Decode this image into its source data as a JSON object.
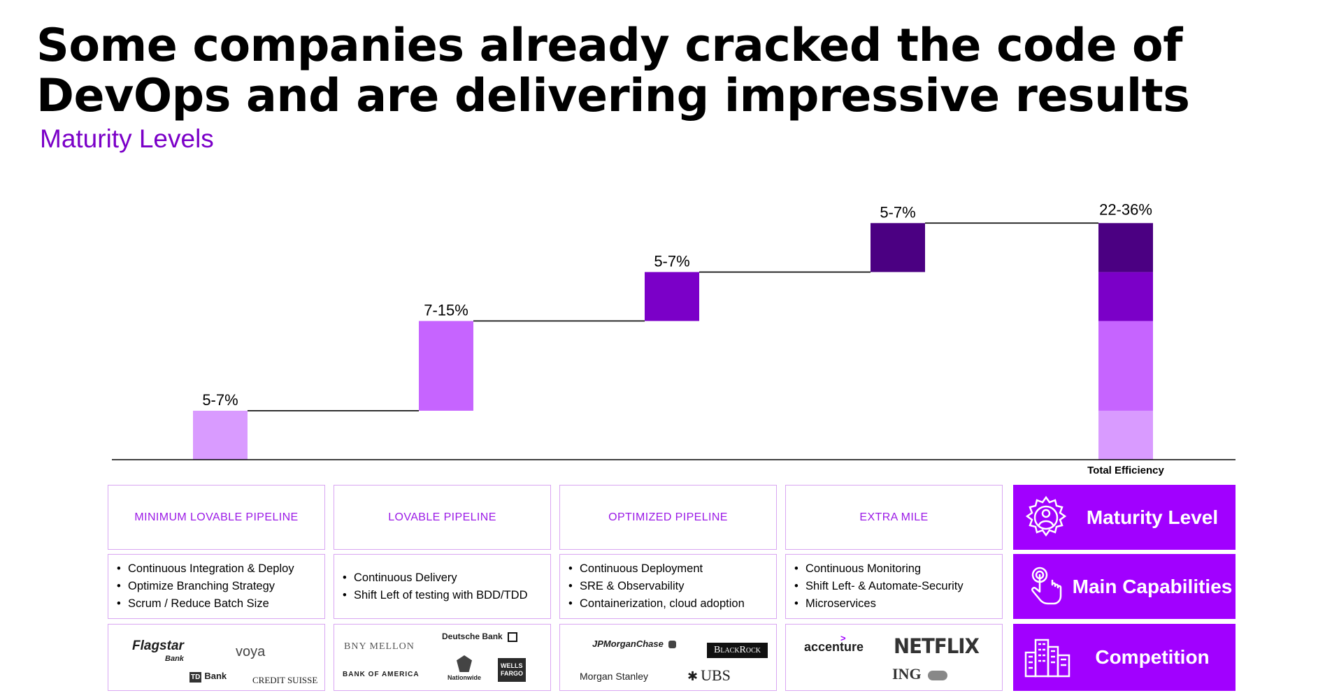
{
  "title": {
    "line1": "Some companies already cracked the code of",
    "line2": "DevOps and are delivering impressive results"
  },
  "subtitle": "Maturity Levels",
  "colors": {
    "accent": "#A100FF",
    "level1": "#D99BFF",
    "level2": "#C664FF",
    "level3": "#7B00C8",
    "level4": "#4B0082",
    "border": "#D9A6F2"
  },
  "chart_data": {
    "type": "bar",
    "subtype": "waterfall",
    "categories": [
      "MINIMUM LOVABLE PIPELINE",
      "LOVABLE PIPELINE",
      "OPTIMIZED PIPELINE",
      "EXTRA MILE",
      "Total Efficiency"
    ],
    "bars": [
      {
        "label": "5-7%",
        "low": 0,
        "high": 6
      },
      {
        "label": "7-15%",
        "low": 6,
        "high": 17
      },
      {
        "label": "5-7%",
        "low": 17,
        "high": 23
      },
      {
        "label": "5-7%",
        "low": 23,
        "high": 29
      }
    ],
    "total": {
      "label": "22-36%",
      "segments": [
        6,
        11,
        6,
        6
      ]
    },
    "total_label": "Total Efficiency",
    "ylim": [
      0,
      31
    ],
    "connectors": true,
    "grid": false
  },
  "stages": [
    {
      "name": "MINIMUM LOVABLE PIPELINE",
      "capabilities": [
        "Continuous Integration & Deploy",
        "Optimize Branching Strategy",
        "Scrum / Reduce Batch Size"
      ],
      "companies": [
        "Flagstar",
        "Bank",
        "voya",
        "TD",
        "Bank",
        "CREDIT SUISSE"
      ]
    },
    {
      "name": "LOVABLE PIPELINE",
      "capabilities": [
        "Continuous Delivery",
        "Shift Left of testing with  BDD/TDD"
      ],
      "companies": [
        "BNY MELLON",
        "Deutsche Bank",
        "BANK OF AMERICA",
        "Nationwide",
        "WELLS",
        "FARGO"
      ]
    },
    {
      "name": "OPTIMIZED PIPELINE",
      "capabilities": [
        "Continuous Deployment",
        "SRE & Observability",
        "Containerization, cloud adoption"
      ],
      "companies": [
        "JPMorganChase",
        "BlackRock",
        "Morgan Stanley",
        "UBS"
      ]
    },
    {
      "name": "EXTRA MILE",
      "capabilities": [
        "Continuous Monitoring",
        "Shift Left- & Automate-Security",
        "Microservices"
      ],
      "companies": [
        "accenture",
        "NETFLIX",
        "ING"
      ]
    }
  ],
  "legend": [
    {
      "label": "Maturity Level",
      "icon": "gear-person-icon"
    },
    {
      "label": "Main Capabilities",
      "icon": "hand-tap-icon"
    },
    {
      "label": "Competition",
      "icon": "buildings-icon"
    }
  ]
}
